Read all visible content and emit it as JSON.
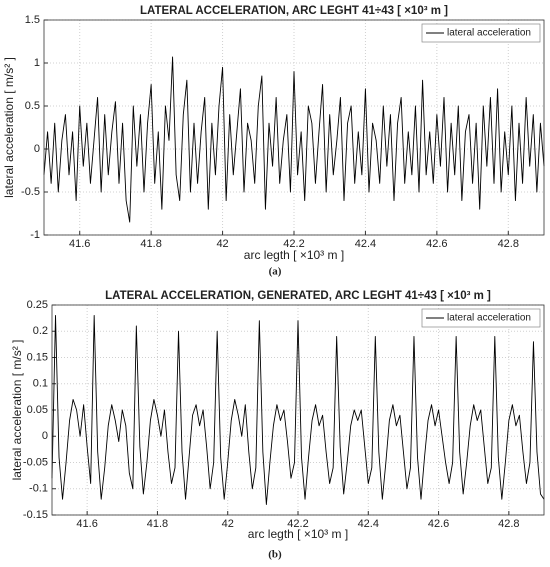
{
  "chart_data": [
    {
      "type": "line",
      "title": "LATERAL ACCELERATION, ARC LEGHT  41÷43 [ ×10³ m ]",
      "xlabel": "arc legth [ ×10³ m ]",
      "ylabel": "lateral acceleration  [ m/s² ]",
      "caption": "(a)",
      "x": [
        41.5,
        41.51,
        41.52,
        41.53,
        41.54,
        41.55,
        41.56,
        41.57,
        41.58,
        41.59,
        41.6,
        41.61,
        41.62,
        41.63,
        41.64,
        41.65,
        41.66,
        41.67,
        41.68,
        41.69,
        41.7,
        41.71,
        41.72,
        41.73,
        41.74,
        41.75,
        41.76,
        41.77,
        41.78,
        41.79,
        41.8,
        41.81,
        41.82,
        41.83,
        41.84,
        41.85,
        41.86,
        41.87,
        41.88,
        41.89,
        41.9,
        41.91,
        41.92,
        41.93,
        41.94,
        41.95,
        41.96,
        41.97,
        41.98,
        41.99,
        42,
        42.01,
        42.02,
        42.03,
        42.04,
        42.05,
        42.06,
        42.07,
        42.08,
        42.09,
        42.1,
        42.11,
        42.12,
        42.13,
        42.14,
        42.15,
        42.16,
        42.17,
        42.18,
        42.19,
        42.2,
        42.21,
        42.22,
        42.23,
        42.24,
        42.25,
        42.26,
        42.27,
        42.28,
        42.29,
        42.3,
        42.31,
        42.32,
        42.33,
        42.34,
        42.35,
        42.36,
        42.37,
        42.38,
        42.39,
        42.4,
        42.41,
        42.42,
        42.43,
        42.44,
        42.45,
        42.46,
        42.47,
        42.48,
        42.49,
        42.5,
        42.51,
        42.52,
        42.53,
        42.54,
        42.55,
        42.56,
        42.57,
        42.58,
        42.59,
        42.6,
        42.61,
        42.62,
        42.63,
        42.64,
        42.65,
        42.66,
        42.67,
        42.68,
        42.69,
        42.7,
        42.71,
        42.72,
        42.73,
        42.74,
        42.75,
        42.76,
        42.77,
        42.78,
        42.79,
        42.8,
        42.81,
        42.82,
        42.83,
        42.84,
        42.85,
        42.86,
        42.87,
        42.88,
        42.89,
        42.9
      ],
      "series": [
        {
          "name": "lateral acceleration",
          "color": "#000000",
          "values": [
            -0.3,
            0.2,
            -0.4,
            0.3,
            -0.5,
            0.1,
            0.4,
            -0.3,
            0.2,
            -0.6,
            0.5,
            -0.2,
            0.3,
            -0.4,
            0.1,
            0.6,
            -0.5,
            0.4,
            -0.3,
            0.2,
            0.55,
            -0.4,
            0.3,
            -0.6,
            -0.85,
            0.5,
            -0.2,
            0.4,
            -0.5,
            0.3,
            0.75,
            -0.4,
            0.2,
            -0.7,
            0.5,
            0.1,
            1.07,
            -0.3,
            -0.6,
            0.4,
            0.8,
            -0.5,
            0.3,
            -0.4,
            0.2,
            0.6,
            -0.7,
            0.3,
            -0.3,
            0.5,
            0.95,
            -0.6,
            0.4,
            -0.3,
            0.2,
            0.7,
            -0.5,
            0.3,
            0.1,
            -0.4,
            0.5,
            0.85,
            -0.7,
            0.3,
            -0.2,
            0.6,
            -0.4,
            0.1,
            0.4,
            -0.5,
            0.9,
            -0.3,
            0.2,
            -0.6,
            0.5,
            0.3,
            -0.4,
            0.2,
            0.75,
            -0.5,
            0.4,
            -0.3,
            0.1,
            0.6,
            -0.6,
            0.3,
            0.5,
            -0.4,
            0.2,
            -0.3,
            0.7,
            -0.5,
            0.3,
            0.1,
            -0.4,
            0.5,
            -0.2,
            0.4,
            -0.6,
            0.3,
            0.6,
            -0.4,
            0.2,
            -0.3,
            0.5,
            -0.5,
            0.8,
            -0.3,
            0.2,
            -0.4,
            0.4,
            -0.2,
            0.6,
            -0.5,
            0.3,
            -0.3,
            0.5,
            -0.6,
            0.2,
            0.4,
            -0.4,
            0.3,
            -0.7,
            0.5,
            -0.2,
            0.6,
            -0.4,
            0.7,
            -0.5,
            0.2,
            -0.3,
            0.5,
            -0.6,
            0.3,
            -0.4,
            0.6,
            -0.2,
            0.4,
            -0.5,
            0.3,
            -0.2
          ]
        }
      ],
      "xlim": [
        41.5,
        42.9
      ],
      "xticks": [
        41.6,
        41.8,
        42,
        42.2,
        42.4,
        42.6,
        42.8
      ],
      "ylim": [
        -1,
        1.5
      ],
      "yticks": [
        -1,
        -0.5,
        0,
        0.5,
        1,
        1.5
      ],
      "grid": true,
      "legend": "upper right"
    },
    {
      "type": "line",
      "title": "LATERAL ACCELERATION, GENERATED, ARC LEGHT  41÷43 [ ×10³ m ]",
      "xlabel": "arc legth [ ×10³ m ]",
      "ylabel": "lateral acceleration  [ m/s² ]",
      "caption": "(b)",
      "x": [
        41.5,
        41.51,
        41.52,
        41.53,
        41.54,
        41.55,
        41.56,
        41.57,
        41.58,
        41.59,
        41.6,
        41.61,
        41.62,
        41.63,
        41.64,
        41.65,
        41.66,
        41.67,
        41.68,
        41.69,
        41.7,
        41.71,
        41.72,
        41.73,
        41.74,
        41.75,
        41.76,
        41.77,
        41.78,
        41.79,
        41.8,
        41.81,
        41.82,
        41.83,
        41.84,
        41.85,
        41.86,
        41.87,
        41.88,
        41.89,
        41.9,
        41.91,
        41.92,
        41.93,
        41.94,
        41.95,
        41.96,
        41.97,
        41.98,
        41.99,
        42,
        42.01,
        42.02,
        42.03,
        42.04,
        42.05,
        42.06,
        42.07,
        42.08,
        42.09,
        42.1,
        42.11,
        42.12,
        42.13,
        42.14,
        42.15,
        42.16,
        42.17,
        42.18,
        42.19,
        42.2,
        42.21,
        42.22,
        42.23,
        42.24,
        42.25,
        42.26,
        42.27,
        42.28,
        42.29,
        42.3,
        42.31,
        42.32,
        42.33,
        42.34,
        42.35,
        42.36,
        42.37,
        42.38,
        42.39,
        42.4,
        42.41,
        42.42,
        42.43,
        42.44,
        42.45,
        42.46,
        42.47,
        42.48,
        42.49,
        42.5,
        42.51,
        42.52,
        42.53,
        42.54,
        42.55,
        42.56,
        42.57,
        42.58,
        42.59,
        42.6,
        42.61,
        42.62,
        42.63,
        42.64,
        42.65,
        42.66,
        42.67,
        42.68,
        42.69,
        42.7,
        42.71,
        42.72,
        42.73,
        42.74,
        42.75,
        42.76,
        42.77,
        42.78,
        42.79,
        42.8,
        42.81,
        42.82,
        42.83,
        42.84,
        42.85,
        42.86,
        42.87,
        42.88,
        42.89,
        42.9
      ],
      "series": [
        {
          "name": "lateral acceleration",
          "color": "#000000",
          "values": [
            -0.08,
            0.23,
            -0.04,
            -0.12,
            -0.05,
            0.03,
            0.07,
            0.05,
            0.0,
            0.06,
            -0.02,
            -0.09,
            0.23,
            -0.03,
            -0.12,
            -0.06,
            0.02,
            0.06,
            0.03,
            -0.01,
            0.05,
            0.02,
            -0.07,
            -0.1,
            0.21,
            -0.02,
            -0.11,
            -0.05,
            0.03,
            0.07,
            0.04,
            0.0,
            0.05,
            -0.03,
            -0.09,
            -0.06,
            0.2,
            -0.03,
            -0.12,
            -0.04,
            0.04,
            0.06,
            0.02,
            0.05,
            -0.02,
            -0.1,
            -0.05,
            0.2,
            -0.04,
            -0.12,
            -0.05,
            0.03,
            0.07,
            0.04,
            0.0,
            0.06,
            -0.03,
            -0.1,
            -0.06,
            0.22,
            -0.03,
            -0.13,
            -0.05,
            0.02,
            0.06,
            0.03,
            0.05,
            -0.01,
            -0.08,
            -0.05,
            0.22,
            -0.04,
            -0.12,
            -0.04,
            0.03,
            0.06,
            0.02,
            0.04,
            -0.03,
            -0.09,
            -0.06,
            0.19,
            -0.02,
            -0.11,
            -0.05,
            0.02,
            0.05,
            0.03,
            0.05,
            -0.02,
            -0.09,
            -0.06,
            0.19,
            -0.03,
            -0.12,
            -0.05,
            0.03,
            0.06,
            0.02,
            0.04,
            -0.03,
            -0.1,
            -0.06,
            0.19,
            -0.04,
            -0.12,
            -0.04,
            0.03,
            0.06,
            0.02,
            0.05,
            0.0,
            -0.05,
            -0.09,
            -0.05,
            0.19,
            -0.03,
            -0.11,
            -0.05,
            0.02,
            0.06,
            0.03,
            0.05,
            -0.02,
            -0.09,
            -0.06,
            0.19,
            -0.04,
            -0.12,
            -0.05,
            0.03,
            0.06,
            0.02,
            0.04,
            -0.03,
            -0.09,
            -0.05,
            0.18,
            -0.03,
            -0.11,
            -0.12
          ]
        }
      ],
      "xlim": [
        41.5,
        42.9
      ],
      "xticks": [
        41.6,
        41.8,
        42,
        42.2,
        42.4,
        42.6,
        42.8
      ],
      "ylim": [
        -0.15,
        0.25
      ],
      "yticks": [
        -0.15,
        -0.1,
        -0.05,
        0,
        0.05,
        0.1,
        0.15,
        0.2,
        0.25
      ],
      "grid": true,
      "legend": "upper right"
    }
  ]
}
